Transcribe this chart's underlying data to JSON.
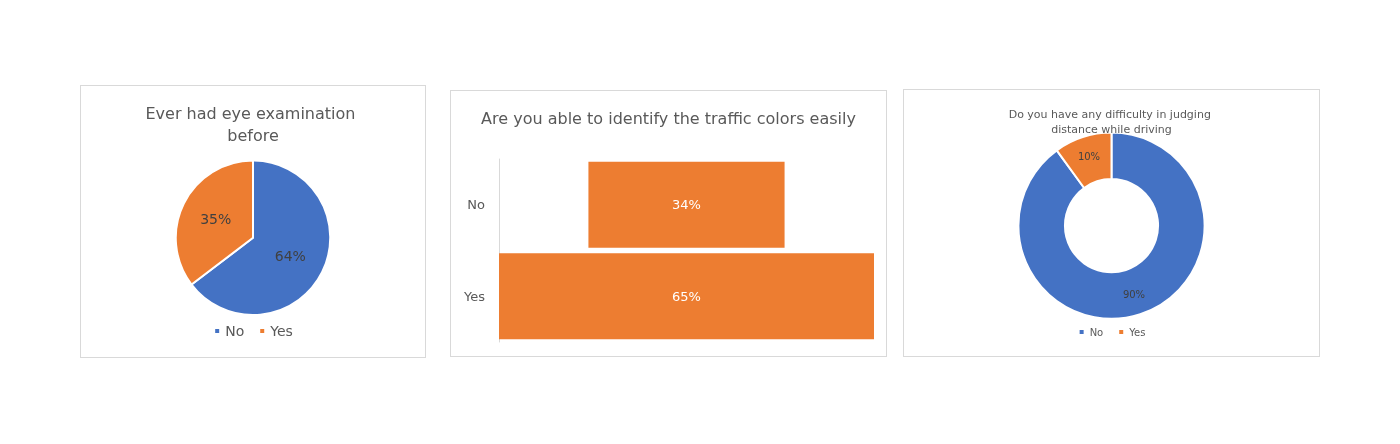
{
  "chart_data": [
    {
      "type": "pie",
      "title": "Ever had eye examination before",
      "categories": [
        "No",
        "Yes"
      ],
      "values": [
        64,
        35
      ],
      "colors": [
        "#4472c4",
        "#ed7d31"
      ],
      "value_labels": [
        "64%",
        "35%"
      ],
      "legend": "bottom"
    },
    {
      "type": "other",
      "title": "Are you able to identify the traffic colors easily",
      "categories": [
        "No",
        "Yes"
      ],
      "values": [
        34,
        65
      ],
      "color": "#ed7d31",
      "value_labels": [
        "34%",
        "65%"
      ]
    },
    {
      "type": "donut",
      "title": "Do you have any difficulty in judging distance while driving",
      "categories": [
        "No",
        "Yes"
      ],
      "values": [
        90,
        10
      ],
      "colors": [
        "#4472c4",
        "#ed7d31"
      ],
      "value_labels": [
        "90%",
        "10%"
      ],
      "legend": "bottom"
    }
  ]
}
